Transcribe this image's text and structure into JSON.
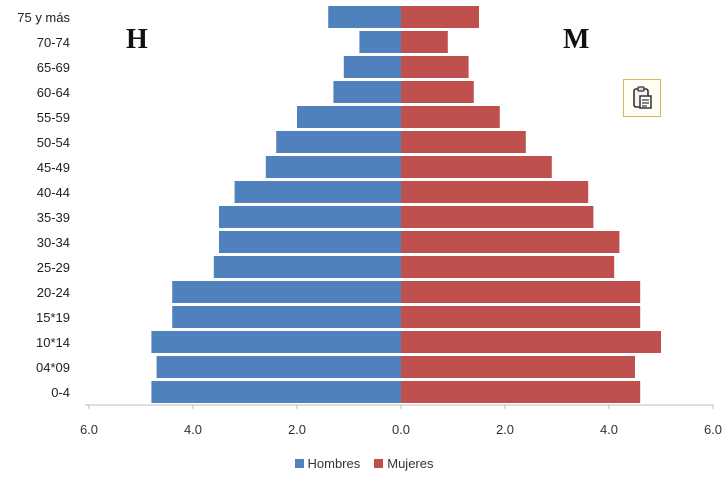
{
  "chart_data": {
    "type": "bar",
    "orientation": "horizontal",
    "subtype": "population-pyramid",
    "categories": [
      "75 y más",
      "70-74",
      "65-69",
      "60-64",
      "55-59",
      "50-54",
      "45-49",
      "40-44",
      "35-39",
      "30-34",
      "25-29",
      "20-24",
      "15*19",
      "10*14",
      "04*09",
      "0-4"
    ],
    "series": [
      {
        "name": "Hombres",
        "color": "#4f81bd",
        "side": "left",
        "values": [
          1.4,
          0.8,
          1.1,
          1.3,
          2.0,
          2.4,
          2.6,
          3.2,
          3.5,
          3.5,
          3.6,
          4.4,
          4.4,
          4.8,
          4.7,
          4.8
        ]
      },
      {
        "name": "Mujeres",
        "color": "#c0504d",
        "side": "right",
        "values": [
          1.5,
          0.9,
          1.3,
          1.4,
          1.9,
          2.4,
          2.9,
          3.6,
          3.7,
          4.2,
          4.1,
          4.6,
          4.6,
          5.0,
          4.5,
          4.6
        ]
      }
    ],
    "x_ticks": [
      "6.0",
      "4.0",
      "2.0",
      "0.0",
      "2.0",
      "4.0",
      "6.0"
    ],
    "xlim": [
      -6,
      6
    ],
    "legend_position": "bottom",
    "grid": false
  },
  "side_labels": {
    "left": "H",
    "right": "M"
  },
  "icons": {
    "paste": "paste-icon"
  }
}
